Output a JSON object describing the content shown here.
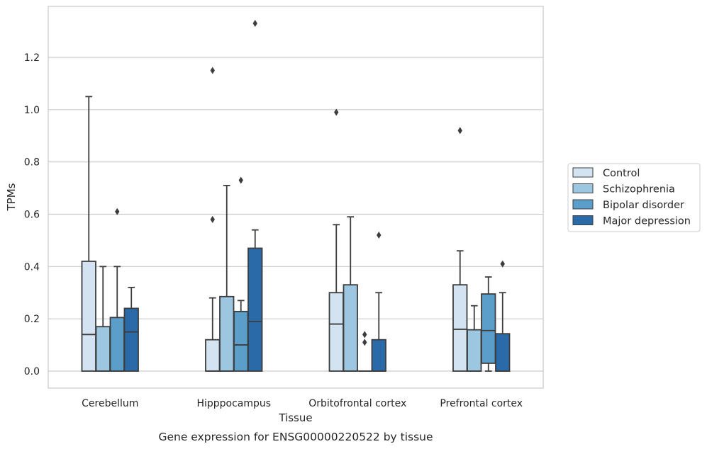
{
  "chart_data": {
    "type": "box",
    "title": "",
    "caption": "Gene expression for ENSG00000220522 by tissue",
    "xlabel": "Tissue",
    "ylabel": "TPMs",
    "ylim": [
      -0.065,
      1.395
    ],
    "yticks": [
      0.0,
      0.2,
      0.4,
      0.6,
      0.8,
      1.0,
      1.2
    ],
    "ytick_labels": [
      "0.0",
      "0.2",
      "0.4",
      "0.6",
      "0.8",
      "1.0",
      "1.2"
    ],
    "grid": "horizontal",
    "legend_position": "right-center",
    "categories": [
      "Cerebellum",
      "Hipppocampus",
      "Orbitofrontal cortex",
      "Prefrontal cortex"
    ],
    "series": [
      {
        "name": "Control",
        "color": "#d3e3f2",
        "boxes": [
          {
            "q1": 0.0,
            "median": 0.14,
            "q3": 0.42,
            "whisker_low": 0.0,
            "whisker_high": 1.05,
            "outliers": []
          },
          {
            "q1": 0.0,
            "median": 0.0,
            "q3": 0.12,
            "whisker_low": 0.0,
            "whisker_high": 0.28,
            "outliers": [
              0.58,
              1.15
            ]
          },
          {
            "q1": 0.0,
            "median": 0.18,
            "q3": 0.3,
            "whisker_low": 0.0,
            "whisker_high": 0.56,
            "outliers": [
              0.99
            ]
          },
          {
            "q1": 0.0,
            "median": 0.16,
            "q3": 0.33,
            "whisker_low": 0.0,
            "whisker_high": 0.46,
            "outliers": [
              0.92
            ]
          }
        ]
      },
      {
        "name": "Schizophrenia",
        "color": "#9dc6e0",
        "boxes": [
          {
            "q1": 0.0,
            "median": 0.0,
            "q3": 0.17,
            "whisker_low": 0.0,
            "whisker_high": 0.4,
            "outliers": []
          },
          {
            "q1": 0.0,
            "median": 0.0,
            "q3": 0.285,
            "whisker_low": 0.0,
            "whisker_high": 0.71,
            "outliers": []
          },
          {
            "q1": 0.0,
            "median": 0.0,
            "q3": 0.33,
            "whisker_low": 0.0,
            "whisker_high": 0.59,
            "outliers": []
          },
          {
            "q1": 0.0,
            "median": 0.0,
            "q3": 0.158,
            "whisker_low": 0.0,
            "whisker_high": 0.25,
            "outliers": []
          }
        ]
      },
      {
        "name": "Bipolar disorder",
        "color": "#5a9ec9",
        "boxes": [
          {
            "q1": 0.0,
            "median": 0.0,
            "q3": 0.205,
            "whisker_low": 0.0,
            "whisker_high": 0.4,
            "outliers": [
              0.61
            ]
          },
          {
            "q1": 0.0,
            "median": 0.1,
            "q3": 0.228,
            "whisker_low": 0.0,
            "whisker_high": 0.27,
            "outliers": [
              0.73
            ]
          },
          {
            "q1": 0.0,
            "median": 0.0,
            "q3": 0.0,
            "whisker_low": 0.0,
            "whisker_high": 0.0,
            "outliers": [
              0.11,
              0.14
            ]
          },
          {
            "q1": 0.03,
            "median": 0.155,
            "q3": 0.295,
            "whisker_low": 0.0,
            "whisker_high": 0.36,
            "outliers": []
          }
        ]
      },
      {
        "name": "Major depression",
        "color": "#2b6aa8",
        "boxes": [
          {
            "q1": 0.0,
            "median": 0.15,
            "q3": 0.24,
            "whisker_low": 0.0,
            "whisker_high": 0.32,
            "outliers": []
          },
          {
            "q1": 0.0,
            "median": 0.19,
            "q3": 0.47,
            "whisker_low": 0.0,
            "whisker_high": 0.54,
            "outliers": [
              1.33
            ]
          },
          {
            "q1": 0.0,
            "median": 0.0,
            "q3": 0.12,
            "whisker_low": 0.0,
            "whisker_high": 0.3,
            "outliers": [
              0.52
            ]
          },
          {
            "q1": 0.0,
            "median": 0.0,
            "q3": 0.143,
            "whisker_low": 0.0,
            "whisker_high": 0.3,
            "outliers": [
              0.41
            ]
          }
        ]
      }
    ]
  }
}
